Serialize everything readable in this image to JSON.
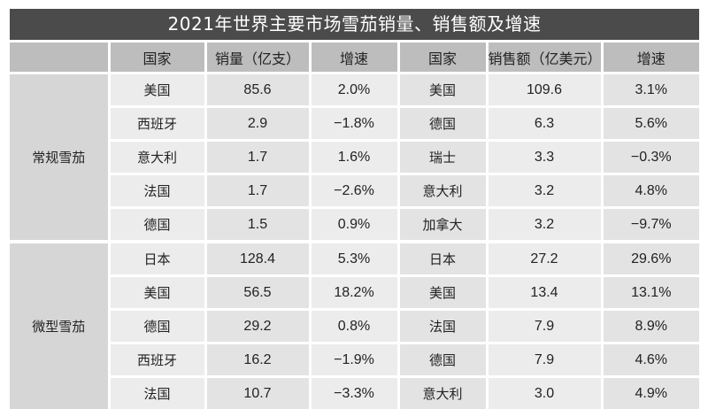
{
  "title": "2021年世界主要市场雪茄销量、销售额及增速",
  "headers": [
    "",
    "国家",
    "销量（亿支）",
    "增速",
    "国家",
    "销售额（亿美元）",
    "增速"
  ],
  "groups": [
    {
      "name": "常规雪茄",
      "rows": [
        {
          "country1": "美国",
          "volume": "85.6",
          "growth1": "2.0%",
          "country2": "美国",
          "sales": "109.6",
          "growth2": "3.1%"
        },
        {
          "country1": "西班牙",
          "volume": "2.9",
          "growth1": "−1.8%",
          "country2": "德国",
          "sales": "6.3",
          "growth2": "5.6%"
        },
        {
          "country1": "意大利",
          "volume": "1.7",
          "growth1": "1.6%",
          "country2": "瑞士",
          "sales": "3.3",
          "growth2": "−0.3%"
        },
        {
          "country1": "法国",
          "volume": "1.7",
          "growth1": "−2.6%",
          "country2": "意大利",
          "sales": "3.2",
          "growth2": "4.8%"
        },
        {
          "country1": "德国",
          "volume": "1.5",
          "growth1": "0.9%",
          "country2": "加拿大",
          "sales": "3.2",
          "growth2": "−9.7%"
        }
      ]
    },
    {
      "name": "微型雪茄",
      "rows": [
        {
          "country1": "日本",
          "volume": "128.4",
          "growth1": "5.3%",
          "country2": "日本",
          "sales": "27.2",
          "growth2": "29.6%"
        },
        {
          "country1": "美国",
          "volume": "56.5",
          "growth1": "18.2%",
          "country2": "美国",
          "sales": "13.4",
          "growth2": "13.1%"
        },
        {
          "country1": "德国",
          "volume": "29.2",
          "growth1": "0.8%",
          "country2": "法国",
          "sales": "7.9",
          "growth2": "8.9%"
        },
        {
          "country1": "西班牙",
          "volume": "16.2",
          "growth1": "−1.9%",
          "country2": "德国",
          "sales": "7.9",
          "growth2": "4.6%"
        },
        {
          "country1": "法国",
          "volume": "10.7",
          "growth1": "−3.3%",
          "country2": "意大利",
          "sales": "3.0",
          "growth2": "4.9%"
        }
      ]
    }
  ]
}
